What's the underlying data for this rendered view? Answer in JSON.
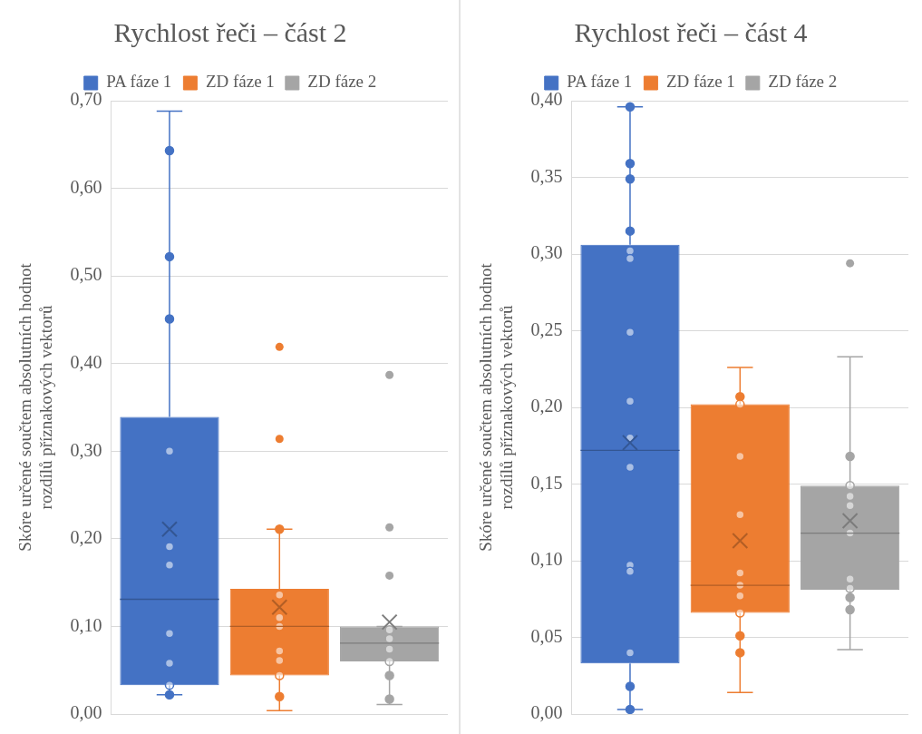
{
  "chart_data": [
    {
      "type": "box",
      "title": "Rychlost řeči – část 2",
      "ylabel": "Skóre určené součtem absolutních hodnot rozdílů příznakových vektorů",
      "categories": [
        null
      ],
      "legend": "top",
      "grid": "y",
      "ylim": [
        0,
        0.7
      ],
      "yticks": [
        {
          "value": 0,
          "label": "0,00"
        },
        {
          "value": 0.1,
          "label": "0,10"
        },
        {
          "value": 0.2,
          "label": "0,20"
        },
        {
          "value": 0.3,
          "label": "0,30"
        },
        {
          "value": 0.4,
          "label": "0,40"
        },
        {
          "value": 0.5,
          "label": "0,50"
        },
        {
          "value": 0.6,
          "label": "0,60"
        },
        {
          "value": 0.7,
          "label": "0,70"
        }
      ],
      "series": [
        {
          "name": "PA fáze 1",
          "color": "#4472c4",
          "type": "box",
          "boxes": [
            {
              "low": 0.022,
              "q1": 0.033,
              "median": 0.131,
              "q3": 0.339,
              "high": 0.688,
              "mean": 0.211
            }
          ]
        },
        {
          "type": "scatter",
          "color": "#4472c4",
          "x": [
            null,
            null,
            null,
            null,
            null,
            null,
            null,
            null,
            null,
            null
          ],
          "values": [
            0.643,
            0.522,
            0.451,
            0.3,
            0.191,
            0.17,
            0.092,
            0.058,
            0.033,
            0.022
          ]
        },
        {
          "name": "ZD fáze 1",
          "color": "#ed7d31",
          "type": "box",
          "boxes": [
            {
              "low": 0.004,
              "q1": 0.044,
              "median": 0.1,
              "q3": 0.143,
              "high": 0.211,
              "mean": 0.122,
              "outliers": [
                0.419,
                0.314
              ]
            }
          ]
        },
        {
          "type": "scatter",
          "color": "#ed7d31",
          "x": [
            null,
            null,
            null,
            null,
            null,
            null,
            null,
            null
          ],
          "values": [
            0.211,
            0.136,
            0.11,
            0.1,
            0.072,
            0.061,
            0.044,
            0.02
          ]
        },
        {
          "name": "ZD fáze 2",
          "color": "#a5a5a5",
          "type": "box",
          "boxes": [
            {
              "low": 0.011,
              "q1": 0.06,
              "median": 0.081,
              "q3": 0.1,
              "high": 0.1,
              "mean": 0.105,
              "outliers": [
                0.387,
                0.213,
                0.158
              ]
            }
          ]
        },
        {
          "type": "scatter",
          "color": "#a5a5a5",
          "x": [
            null,
            null,
            null,
            null,
            null,
            null
          ],
          "values": [
            0.096,
            0.086,
            0.074,
            0.06,
            0.044,
            0.017
          ]
        }
      ]
    },
    {
      "type": "box",
      "title": "Rychlost řeči – část 4",
      "ylabel": "Skóre určené součtem absolutních hodnot rozdílů příznakových vektorů",
      "categories": [
        null
      ],
      "legend": "top",
      "grid": "y",
      "ylim": [
        0,
        0.4
      ],
      "yticks": [
        {
          "value": 0,
          "label": "0,00"
        },
        {
          "value": 0.05,
          "label": "0,05"
        },
        {
          "value": 0.1,
          "label": "0,10"
        },
        {
          "value": 0.15,
          "label": "0,15"
        },
        {
          "value": 0.2,
          "label": "0,20"
        },
        {
          "value": 0.25,
          "label": "0,25"
        },
        {
          "value": 0.3,
          "label": "0,30"
        },
        {
          "value": 0.35,
          "label": "0,35"
        },
        {
          "value": 0.4,
          "label": "0,40"
        }
      ],
      "series": [
        {
          "name": "PA fáze 1",
          "color": "#4472c4",
          "type": "box",
          "boxes": [
            {
              "low": 0.003,
              "q1": 0.033,
              "median": 0.172,
              "q3": 0.306,
              "high": 0.396,
              "mean": 0.177
            }
          ]
        },
        {
          "type": "scatter",
          "color": "#4472c4",
          "x": [
            null,
            null,
            null,
            null,
            null,
            null,
            null,
            null,
            null,
            null,
            null,
            null,
            null,
            null,
            null
          ],
          "values": [
            0.396,
            0.359,
            0.349,
            0.315,
            0.302,
            0.297,
            0.249,
            0.204,
            0.18,
            0.161,
            0.097,
            0.093,
            0.04,
            0.018,
            0.003
          ]
        },
        {
          "name": "ZD fáze 1",
          "color": "#ed7d31",
          "type": "box",
          "boxes": [
            {
              "low": 0.014,
              "q1": 0.066,
              "median": 0.084,
              "q3": 0.202,
              "high": 0.226,
              "mean": 0.113
            }
          ]
        },
        {
          "type": "scatter",
          "color": "#ed7d31",
          "x": [
            null,
            null,
            null,
            null,
            null,
            null,
            null,
            null,
            null,
            null
          ],
          "values": [
            0.207,
            0.202,
            0.168,
            0.13,
            0.092,
            0.084,
            0.077,
            0.066,
            0.051,
            0.04
          ]
        },
        {
          "name": "ZD fáze 2",
          "color": "#a5a5a5",
          "type": "box",
          "boxes": [
            {
              "low": 0.042,
              "q1": 0.081,
              "median": 0.118,
              "q3": 0.149,
              "high": 0.233,
              "mean": 0.126,
              "outliers": [
                0.294
              ]
            }
          ]
        },
        {
          "type": "scatter",
          "color": "#a5a5a5",
          "x": [
            null,
            null,
            null,
            null,
            null,
            null,
            null,
            null,
            null
          ],
          "values": [
            0.168,
            0.149,
            0.142,
            0.136,
            0.118,
            0.088,
            0.082,
            0.076,
            0.068
          ]
        }
      ]
    }
  ]
}
